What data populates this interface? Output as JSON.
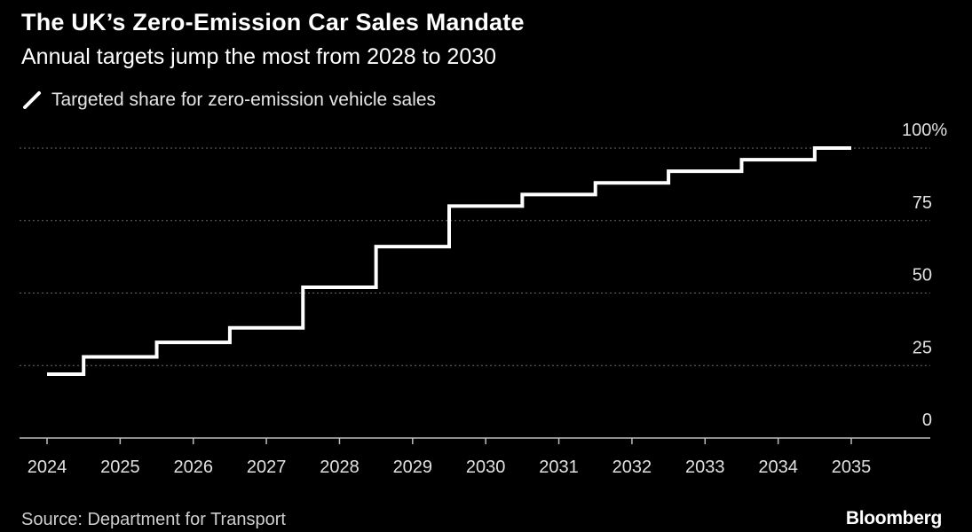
{
  "chart_data": {
    "type": "line",
    "step": "post",
    "title": "The UK’s Zero-Emission Car Sales Mandate",
    "subtitle": "Annual targets jump the most from 2028 to 2030",
    "series": [
      {
        "name": "Targeted share for zero-emission vehicle sales",
        "color": "#ffffff",
        "x": [
          2024,
          2025,
          2026,
          2027,
          2028,
          2029,
          2030,
          2031,
          2032,
          2033,
          2034,
          2035
        ],
        "values": [
          22,
          28,
          33,
          38,
          52,
          66,
          80,
          84,
          88,
          92,
          96,
          100
        ]
      }
    ],
    "categories": [
      "2024",
      "2025",
      "2026",
      "2027",
      "2028",
      "2029",
      "2030",
      "2031",
      "2032",
      "2033",
      "2034",
      "2035"
    ],
    "yticks": [
      0,
      25,
      50,
      75,
      100
    ],
    "ytick_labels": [
      "0",
      "25",
      "50",
      "75",
      "100%"
    ],
    "ylim": [
      0,
      100
    ],
    "xlabel": "",
    "ylabel": "",
    "grid": true,
    "source": "Source: Department for Transport",
    "brand": "Bloomberg"
  }
}
